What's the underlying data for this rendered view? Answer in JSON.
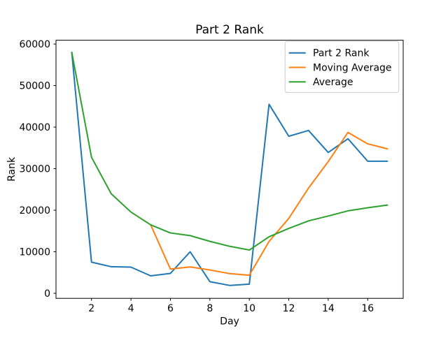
{
  "chart_data": {
    "type": "line",
    "title": "Part 2 Rank",
    "xlabel": "Day",
    "ylabel": "Rank",
    "x": [
      1,
      2,
      3,
      4,
      5,
      6,
      7,
      8,
      9,
      10,
      11,
      12,
      13,
      14,
      15,
      16,
      17
    ],
    "series": [
      {
        "name": "Part 2 Rank",
        "color": "#1f77b4",
        "values": [
          58000,
          7500,
          6400,
          6300,
          4200,
          4800,
          10000,
          2800,
          1900,
          2200,
          45500,
          37800,
          39200,
          33900,
          37200,
          31800,
          31800
        ]
      },
      {
        "name": "Moving Average",
        "color": "#ff7f0e",
        "values": [
          null,
          null,
          null,
          null,
          16480,
          5840,
          6340,
          5620,
          4740,
          4340,
          12480,
          18040,
          25320,
          31720,
          38720,
          35980,
          34780
        ]
      },
      {
        "name": "Average",
        "color": "#2ca02c",
        "values": [
          58000,
          32750,
          23950,
          19550,
          16480,
          14530,
          13890,
          12500,
          11320,
          10410,
          13600,
          15620,
          17430,
          18610,
          19850,
          20590,
          21250
        ]
      }
    ],
    "xticks": [
      2,
      4,
      6,
      8,
      10,
      12,
      14,
      16
    ],
    "yticks": [
      0,
      10000,
      20000,
      30000,
      40000,
      50000,
      60000
    ],
    "xlim": [
      0.2,
      17.8
    ],
    "ylim": [
      -1210,
      60920
    ],
    "grid": false,
    "legend_position": "upper right",
    "legend": [
      "Part 2 Rank",
      "Moving Average",
      "Average"
    ],
    "background_color": "#ffffff",
    "axis_color": "#000000",
    "legend_border_color": "#cccccc",
    "line_width": 2
  }
}
